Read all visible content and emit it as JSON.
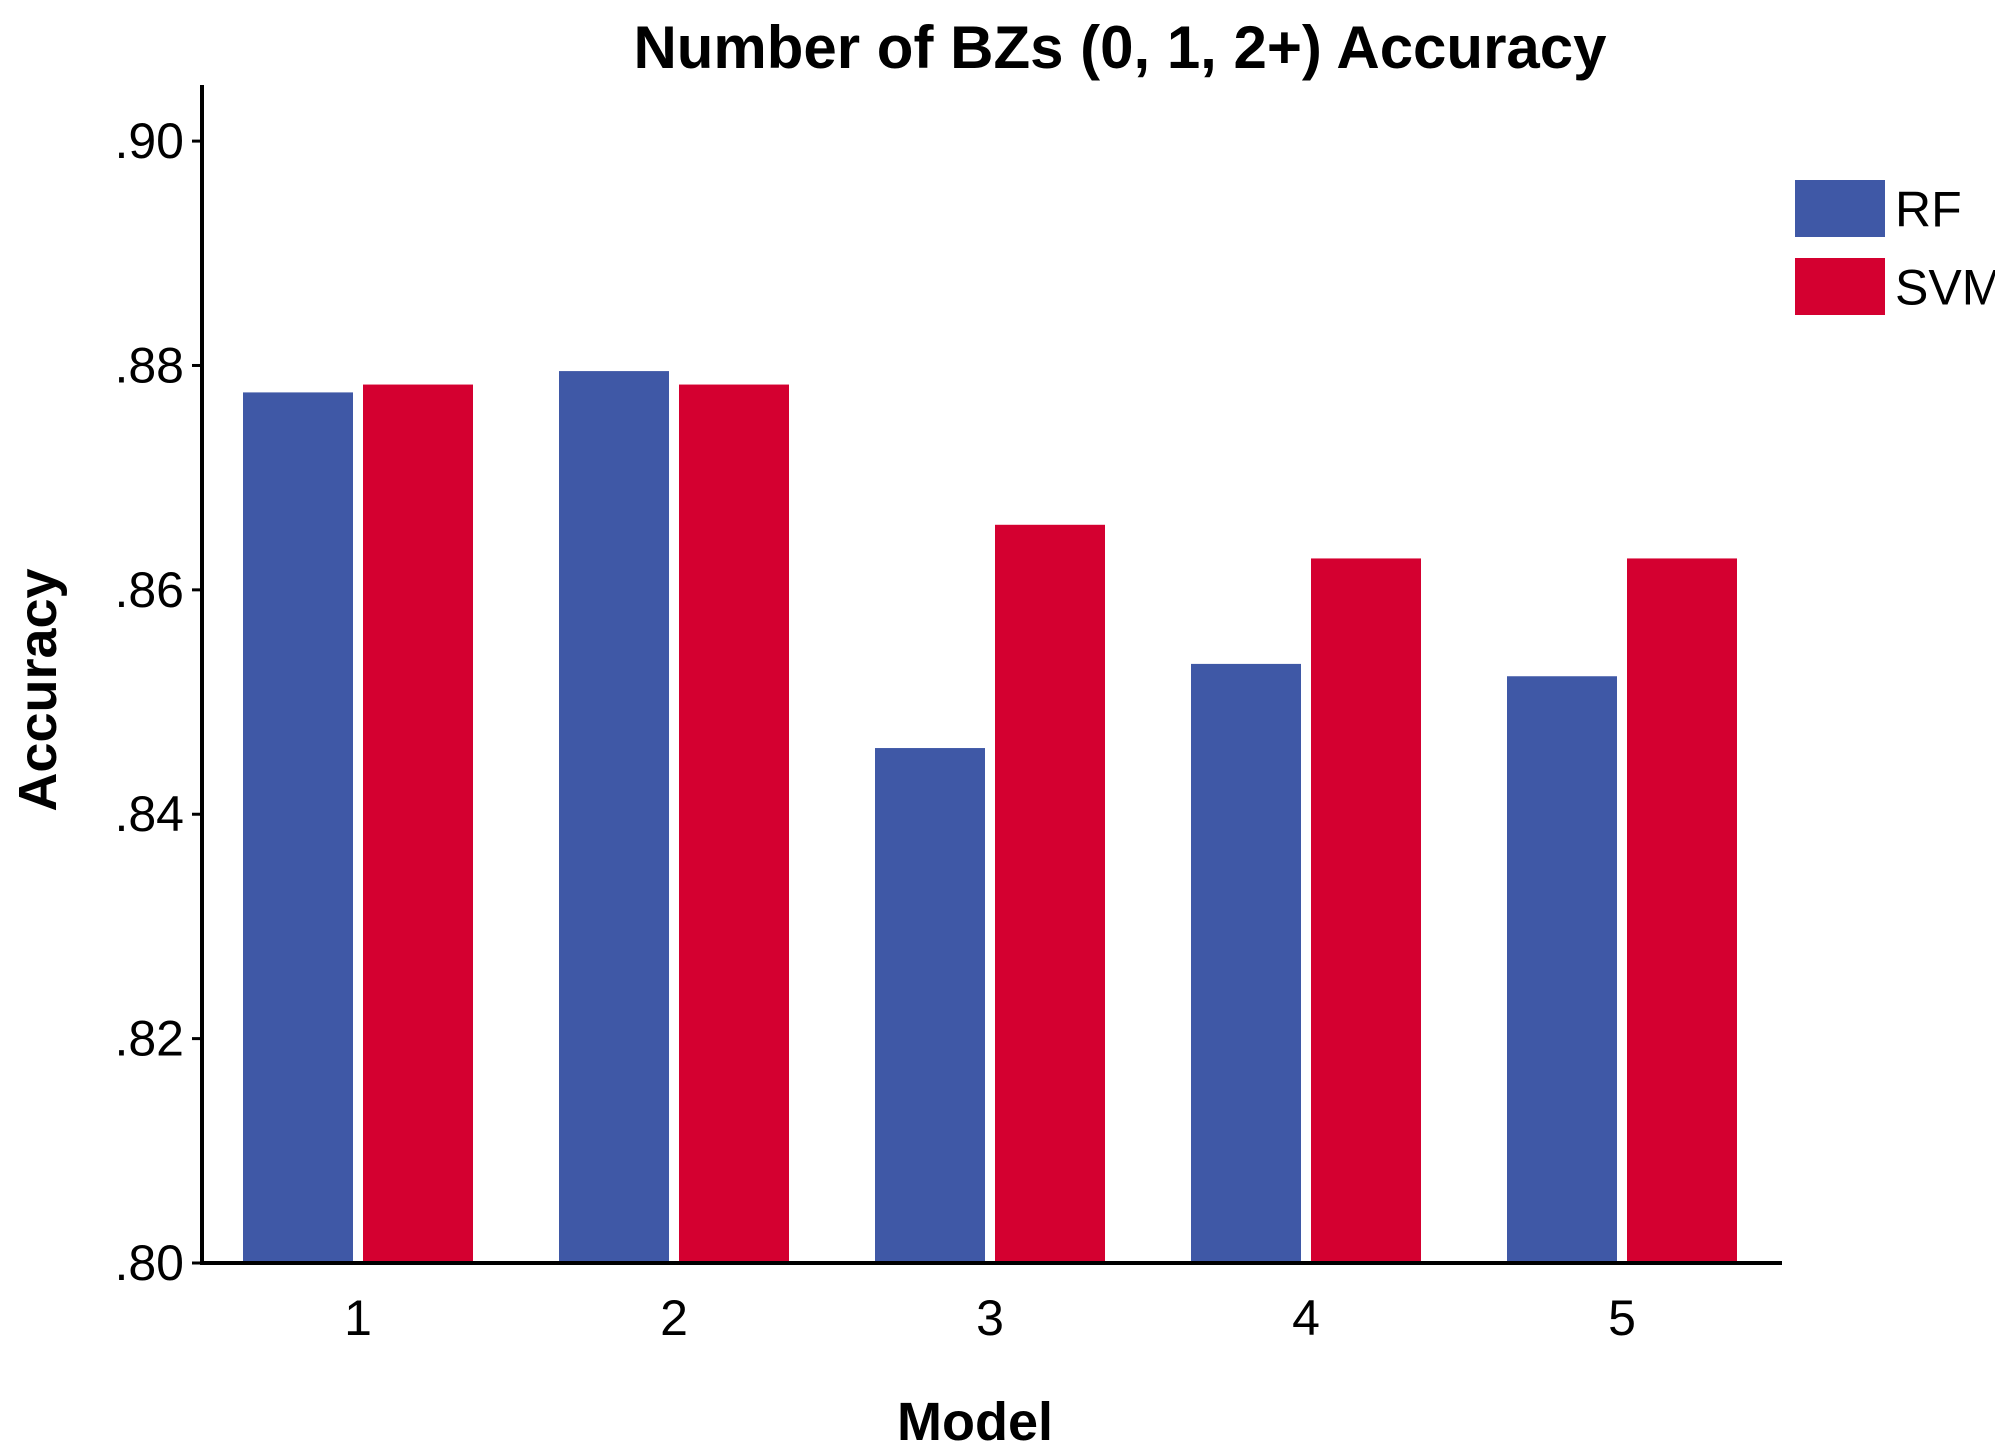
{
  "chart_data": {
    "type": "bar",
    "title": "Number of BZs (0, 1, 2+) Accuracy",
    "xlabel": "Model",
    "ylabel": "Accuracy",
    "categories": [
      "1",
      "2",
      "3",
      "4",
      "5"
    ],
    "series": [
      {
        "name": "RF",
        "color": "#3F58A6",
        "values": [
          0.8776,
          0.8795,
          0.8459,
          0.8534,
          0.8523
        ]
      },
      {
        "name": "SVM",
        "color": "#D40030",
        "values": [
          0.8783,
          0.8783,
          0.8658,
          0.8628,
          0.8628
        ]
      }
    ],
    "ylim": [
      0.8,
      0.905
    ],
    "yticks": [
      0.8,
      0.82,
      0.84,
      0.86,
      0.88,
      0.9
    ],
    "ytick_labels": [
      ".80",
      ".82",
      ".84",
      ".86",
      ".88",
      ".90"
    ],
    "grid": false,
    "legend_position": "top-right"
  }
}
